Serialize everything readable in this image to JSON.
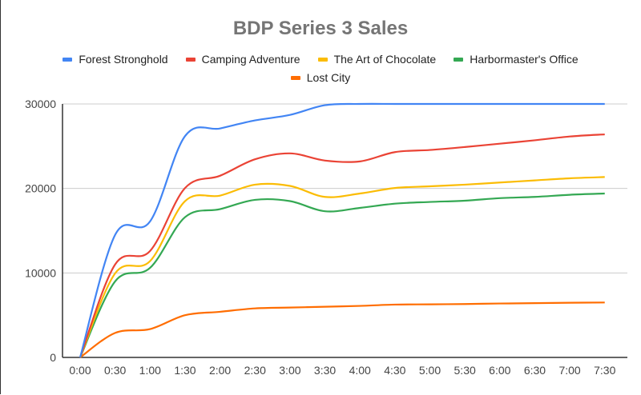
{
  "chart_data": {
    "type": "line",
    "title": "BDP Series 3 Sales",
    "xlabel": "",
    "ylabel": "",
    "categories": [
      "0:00",
      "0:30",
      "1:00",
      "1:30",
      "2:00",
      "2:30",
      "3:00",
      "3:30",
      "4:00",
      "4:30",
      "5:00",
      "5:30",
      "6:00",
      "6:30",
      "7:00",
      "7:30"
    ],
    "yticks": [
      "0",
      "10000",
      "20000",
      "30000"
    ],
    "ylim": [
      0,
      30000
    ],
    "grid": true,
    "legend": "top",
    "smooth": true,
    "series": [
      {
        "name": "Forest Stronghold",
        "color": "#4285f4",
        "values": [
          0,
          14500,
          16100,
          26200,
          27100,
          28050,
          28700,
          29850,
          30000,
          30000,
          30000,
          30000,
          30000,
          30000,
          30000,
          30000
        ]
      },
      {
        "name": "Camping Adventure",
        "color": "#ea4335",
        "values": [
          0,
          11000,
          12600,
          20050,
          21500,
          23450,
          24150,
          23300,
          23200,
          24300,
          24550,
          24900,
          25300,
          25700,
          26150,
          26400
        ]
      },
      {
        "name": "The Art of Chocolate",
        "color": "#fbbc04",
        "values": [
          0,
          9950,
          11400,
          18500,
          19150,
          20450,
          20300,
          19000,
          19400,
          20050,
          20250,
          20450,
          20700,
          20950,
          21200,
          21350
        ]
      },
      {
        "name": "Harbormaster's Office",
        "color": "#34a853",
        "values": [
          0,
          9000,
          10600,
          16600,
          17550,
          18650,
          18500,
          17300,
          17700,
          18200,
          18400,
          18550,
          18850,
          19000,
          19250,
          19400
        ]
      },
      {
        "name": "Lost City",
        "color": "#ff6d01",
        "values": [
          0,
          2900,
          3350,
          5000,
          5400,
          5800,
          5900,
          6000,
          6100,
          6250,
          6280,
          6320,
          6380,
          6420,
          6470,
          6500
        ]
      }
    ]
  }
}
